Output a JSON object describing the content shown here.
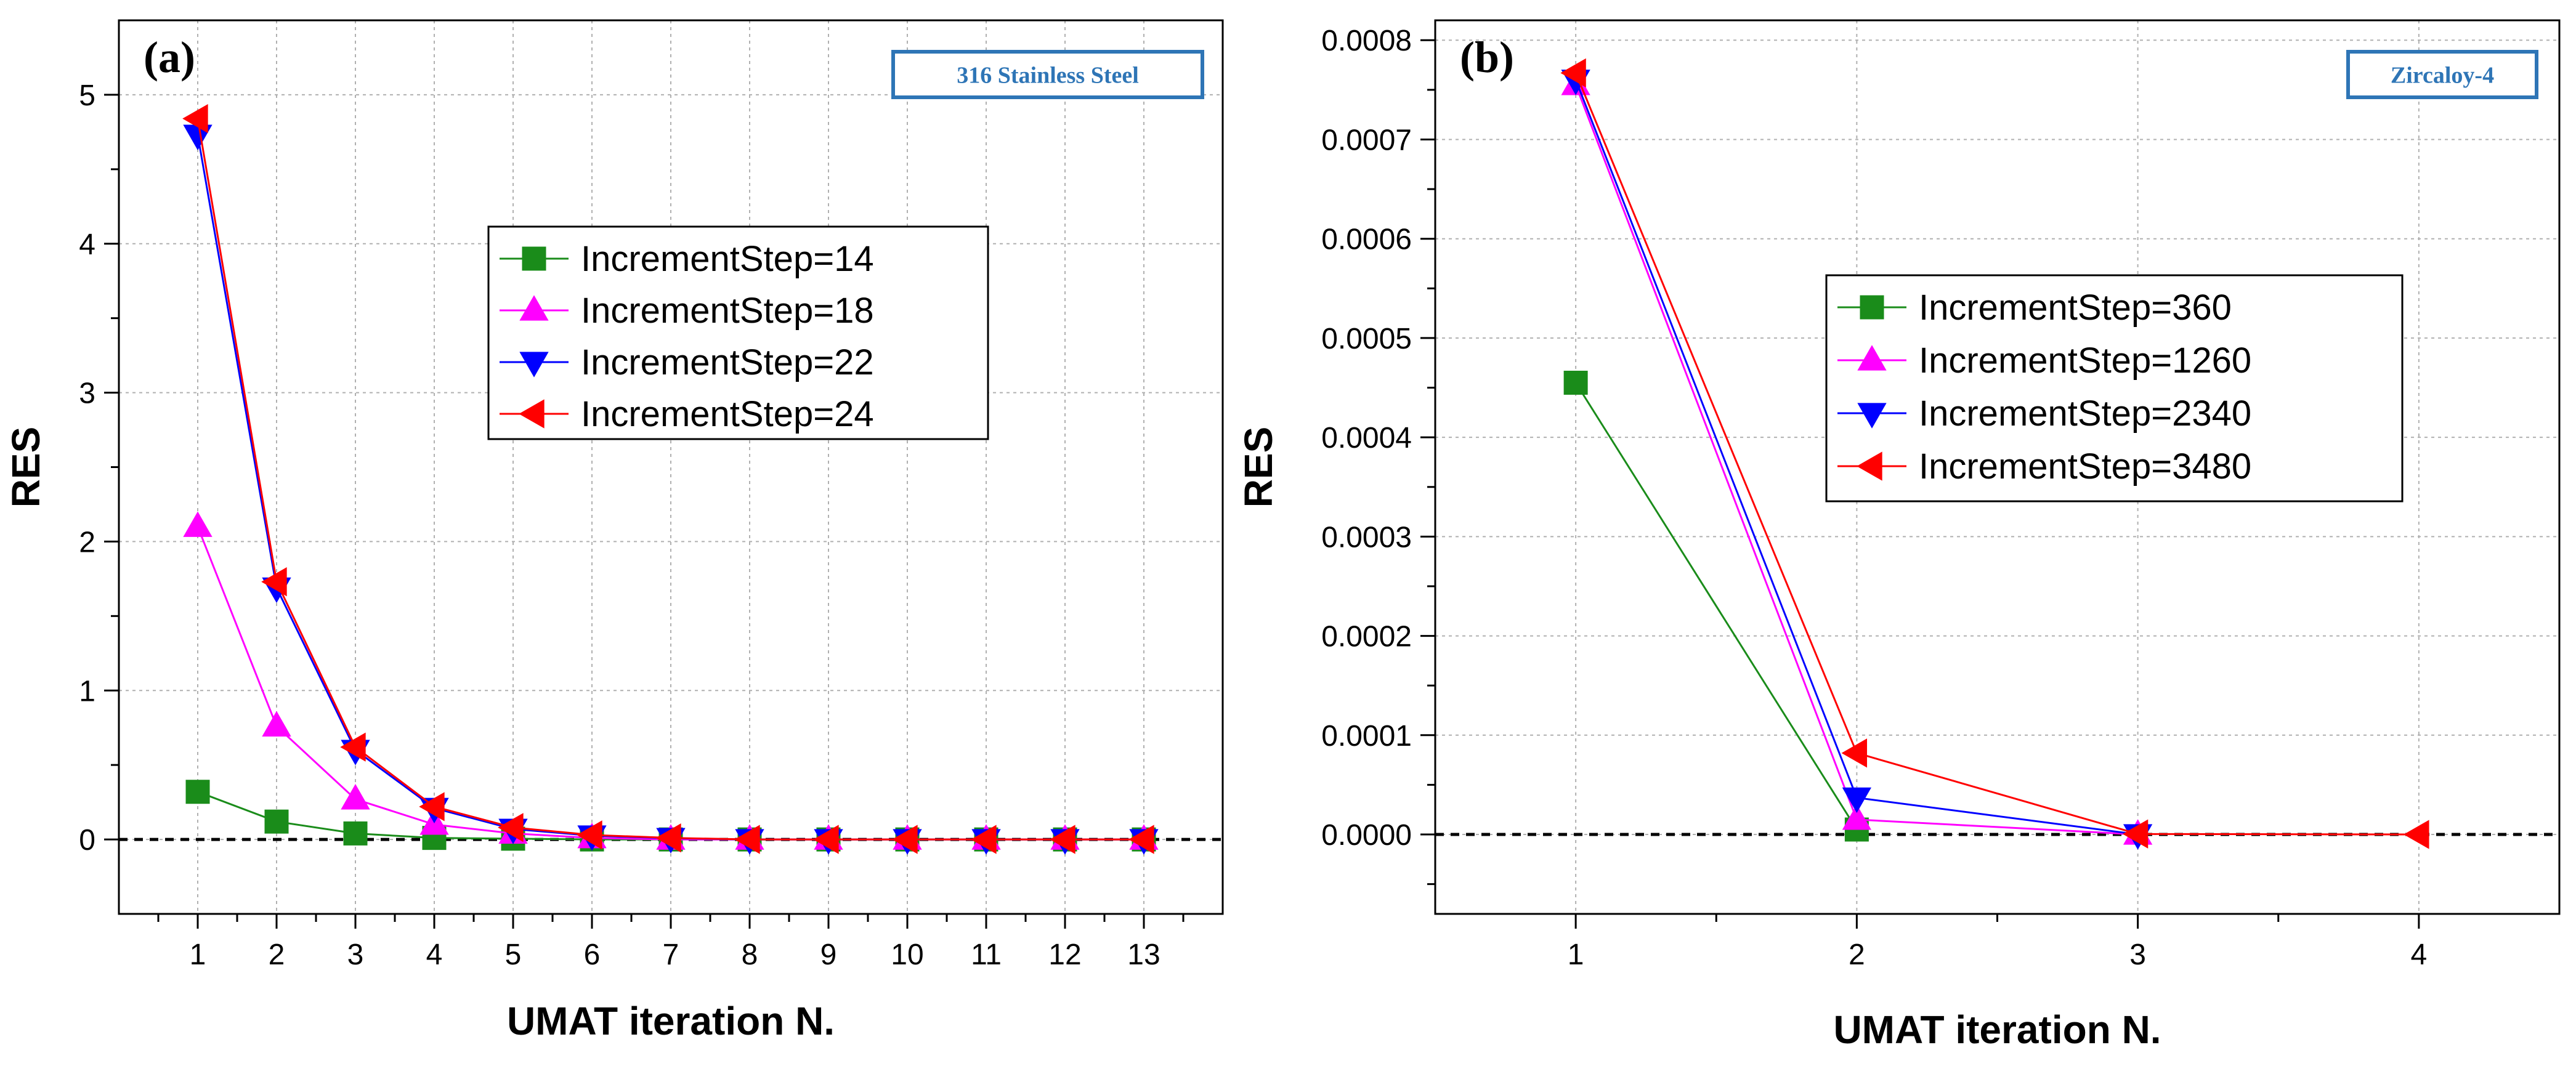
{
  "colors": {
    "green": "#1a8c1a",
    "magenta": "#ff00ff",
    "blue": "#0000ff",
    "red": "#ff0000",
    "zero_line": "#000000",
    "grid": "#b0b0b0",
    "material_box": "#2e75b6"
  },
  "chart_data": [
    {
      "type": "line",
      "panel_label": "(a)",
      "material": "316 Stainless Steel",
      "xlabel": "UMAT iteration N.",
      "ylabel": "RES",
      "xlim": [
        0,
        14
      ],
      "ylim": [
        -0.5,
        5.5
      ],
      "x_ticks": [
        1,
        2,
        3,
        4,
        5,
        6,
        7,
        8,
        9,
        10,
        11,
        12,
        13
      ],
      "x_tick_labels": [
        "1",
        "2",
        "3",
        "4",
        "5",
        "6",
        "7",
        "8",
        "9",
        "10",
        "11",
        "12",
        "13"
      ],
      "y_ticks": [
        0,
        1,
        2,
        3,
        4,
        5
      ],
      "y_tick_labels": [
        "0",
        "1",
        "2",
        "3",
        "4",
        "5"
      ],
      "zero_line": 0,
      "grid": true,
      "legend_position": "upper-middle",
      "series": [
        {
          "name": "IncrementStep=14",
          "marker": "square",
          "color": "#1a8c1a",
          "x": [
            1,
            2,
            3,
            4,
            5,
            6,
            7,
            8,
            9,
            10,
            11,
            12,
            13
          ],
          "values": [
            0.32,
            0.12,
            0.04,
            0.01,
            0.005,
            0,
            0,
            0,
            0,
            0,
            0,
            0,
            0
          ]
        },
        {
          "name": "IncrementStep=18",
          "marker": "triangle-up",
          "color": "#ff00ff",
          "x": [
            1,
            2,
            3,
            4,
            5,
            6,
            7,
            8,
            9,
            10,
            11,
            12,
            13
          ],
          "values": [
            2.1,
            0.76,
            0.27,
            0.1,
            0.04,
            0.01,
            0,
            0,
            0,
            0,
            0,
            0,
            0
          ]
        },
        {
          "name": "IncrementStep=22",
          "marker": "triangle-down",
          "color": "#0000ff",
          "x": [
            1,
            2,
            3,
            4,
            5,
            6,
            7,
            8,
            9,
            10,
            11,
            12,
            13
          ],
          "values": [
            4.73,
            1.69,
            0.6,
            0.21,
            0.07,
            0.025,
            0.008,
            0,
            0,
            0,
            0,
            0,
            0
          ]
        },
        {
          "name": "IncrementStep=24",
          "marker": "triangle-left",
          "color": "#ff0000",
          "x": [
            1,
            2,
            3,
            4,
            5,
            6,
            7,
            8,
            9,
            10,
            11,
            12,
            13
          ],
          "values": [
            4.84,
            1.73,
            0.62,
            0.22,
            0.08,
            0.03,
            0.01,
            0,
            0,
            0,
            0,
            0,
            0
          ]
        }
      ]
    },
    {
      "type": "line",
      "panel_label": "(b)",
      "material": "Zircaloy-4",
      "xlabel": "UMAT iteration N.",
      "ylabel": "RES",
      "xlim": [
        0.5,
        4.5
      ],
      "ylim": [
        -8e-05,
        0.00082
      ],
      "x_ticks": [
        1,
        2,
        3,
        4
      ],
      "x_tick_labels": [
        "1",
        "2",
        "3",
        "4"
      ],
      "y_ticks": [
        0,
        0.0001,
        0.0002,
        0.0003,
        0.0004,
        0.0005,
        0.0006,
        0.0007,
        0.0008
      ],
      "y_tick_labels": [
        "0.0000",
        "0.0001",
        "0.0002",
        "0.0003",
        "0.0004",
        "0.0005",
        "0.0006",
        "0.0007",
        "0.0008"
      ],
      "zero_line": 0,
      "grid": true,
      "legend_position": "middle-right",
      "series": [
        {
          "name": "IncrementStep=360",
          "marker": "square",
          "color": "#1a8c1a",
          "x": [
            1,
            2
          ],
          "values": [
            0.000455,
            5e-06
          ]
        },
        {
          "name": "IncrementStep=1260",
          "marker": "triangle-up",
          "color": "#ff00ff",
          "x": [
            1,
            2,
            3
          ],
          "values": [
            0.000755,
            1.5e-05,
            0
          ]
        },
        {
          "name": "IncrementStep=2340",
          "marker": "triangle-down",
          "color": "#0000ff",
          "x": [
            1,
            2,
            3
          ],
          "values": [
            0.00076,
            3.7e-05,
            0
          ]
        },
        {
          "name": "IncrementStep=3480",
          "marker": "triangle-left",
          "color": "#ff0000",
          "x": [
            1,
            2,
            3,
            4
          ],
          "values": [
            0.000767,
            8.2e-05,
            5e-07,
            0
          ]
        }
      ]
    }
  ]
}
